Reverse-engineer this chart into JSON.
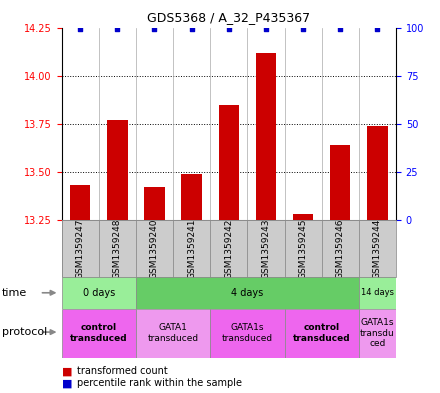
{
  "title": "GDS5368 / A_32_P435367",
  "samples": [
    "GSM1359247",
    "GSM1359248",
    "GSM1359240",
    "GSM1359241",
    "GSM1359242",
    "GSM1359243",
    "GSM1359245",
    "GSM1359246",
    "GSM1359244"
  ],
  "bar_values": [
    13.43,
    13.77,
    13.42,
    13.49,
    13.85,
    14.12,
    13.28,
    13.64,
    13.74
  ],
  "percentile_values": [
    99,
    99,
    99,
    99,
    99,
    99,
    99,
    99,
    99
  ],
  "ylim_left": [
    13.25,
    14.25
  ],
  "ylim_right": [
    0,
    100
  ],
  "yticks_left": [
    13.25,
    13.5,
    13.75,
    14.0,
    14.25
  ],
  "yticks_right": [
    0,
    25,
    50,
    75,
    100
  ],
  "bar_color": "#cc0000",
  "dot_color": "#0000cc",
  "time_groups": [
    {
      "label": "0 days",
      "start": 0,
      "end": 2,
      "color": "#99ee99"
    },
    {
      "label": "4 days",
      "start": 2,
      "end": 8,
      "color": "#66cc66"
    },
    {
      "label": "14 days",
      "start": 8,
      "end": 9,
      "color": "#99ee99"
    }
  ],
  "protocol_groups": [
    {
      "label": "control\ntransduced",
      "start": 0,
      "end": 2,
      "color": "#ee66ee",
      "bold": true
    },
    {
      "label": "GATA1\ntransduced",
      "start": 2,
      "end": 4,
      "color": "#ee99ee",
      "bold": false
    },
    {
      "label": "GATA1s\ntransduced",
      "start": 4,
      "end": 6,
      "color": "#ee66ee",
      "bold": false
    },
    {
      "label": "control\ntransduced",
      "start": 6,
      "end": 8,
      "color": "#ee66ee",
      "bold": true
    },
    {
      "label": "GATA1s\ntransdu\nced",
      "start": 8,
      "end": 9,
      "color": "#ee99ee",
      "bold": false
    }
  ],
  "legend_items": [
    {
      "label": "transformed count",
      "color": "#cc0000"
    },
    {
      "label": "percentile rank within the sample",
      "color": "#0000cc"
    }
  ],
  "sample_box_color": "#cccccc",
  "sample_box_edge": "#888888"
}
